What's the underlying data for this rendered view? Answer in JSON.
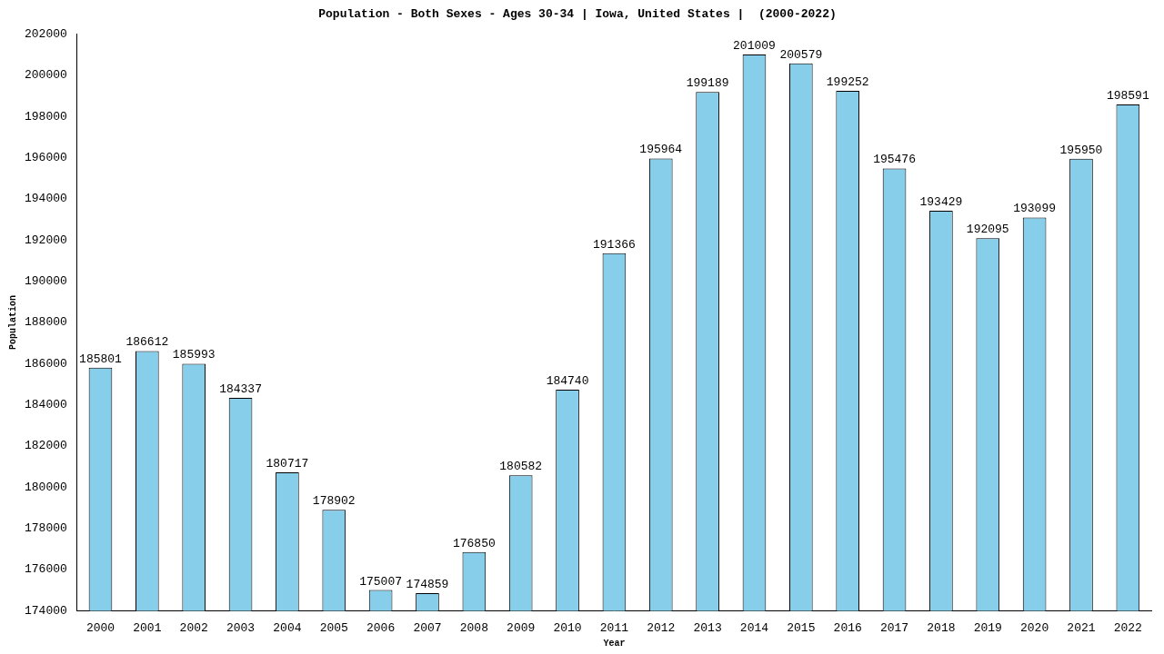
{
  "chart_data": {
    "type": "bar",
    "title": "Population - Both Sexes - Ages 30-34 | Iowa, United States |  (2000-2022)",
    "x_label": "Year",
    "y_label": "Population",
    "categories": [
      "2000",
      "2001",
      "2002",
      "2003",
      "2004",
      "2005",
      "2006",
      "2007",
      "2008",
      "2009",
      "2010",
      "2011",
      "2012",
      "2013",
      "2014",
      "2015",
      "2016",
      "2017",
      "2018",
      "2019",
      "2020",
      "2021",
      "2022"
    ],
    "values": [
      185801,
      186612,
      185993,
      184337,
      180717,
      178902,
      175007,
      174859,
      176850,
      180582,
      184740,
      191366,
      195964,
      199189,
      201009,
      200579,
      199252,
      195476,
      193429,
      192095,
      193099,
      195950,
      198591
    ],
    "color": "#87ceeb",
    "ylim": [
      174000,
      202000
    ],
    "yticks": [
      174000,
      176000,
      178000,
      180000,
      182000,
      184000,
      186000,
      188000,
      190000,
      192000,
      194000,
      196000,
      198000,
      200000,
      202000
    ],
    "grid": false,
    "data_labels": true
  }
}
